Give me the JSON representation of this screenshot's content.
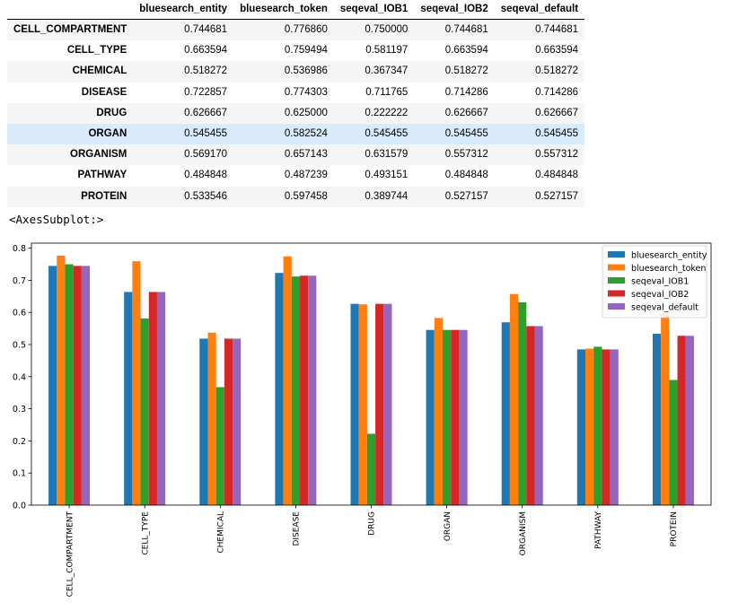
{
  "output_repr": "<AxesSubplot:>",
  "table": {
    "columns": [
      "bluesearch_entity",
      "bluesearch_token",
      "seqeval_IOB1",
      "seqeval_IOB2",
      "seqeval_default"
    ],
    "rows": [
      {
        "label": "CELL_COMPARTMENT",
        "values": [
          "0.744681",
          "0.776860",
          "0.750000",
          "0.744681",
          "0.744681"
        ]
      },
      {
        "label": "CELL_TYPE",
        "values": [
          "0.663594",
          "0.759494",
          "0.581197",
          "0.663594",
          "0.663594"
        ]
      },
      {
        "label": "CHEMICAL",
        "values": [
          "0.518272",
          "0.536986",
          "0.367347",
          "0.518272",
          "0.518272"
        ]
      },
      {
        "label": "DISEASE",
        "values": [
          "0.722857",
          "0.774303",
          "0.711765",
          "0.714286",
          "0.714286"
        ]
      },
      {
        "label": "DRUG",
        "values": [
          "0.626667",
          "0.625000",
          "0.222222",
          "0.626667",
          "0.626667"
        ]
      },
      {
        "label": "ORGAN",
        "values": [
          "0.545455",
          "0.582524",
          "0.545455",
          "0.545455",
          "0.545455"
        ],
        "highlighted": true
      },
      {
        "label": "ORGANISM",
        "values": [
          "0.569170",
          "0.657143",
          "0.631579",
          "0.557312",
          "0.557312"
        ]
      },
      {
        "label": "PATHWAY",
        "values": [
          "0.484848",
          "0.487239",
          "0.493151",
          "0.484848",
          "0.484848"
        ]
      },
      {
        "label": "PROTEIN",
        "values": [
          "0.533546",
          "0.597458",
          "0.389744",
          "0.527157",
          "0.527157"
        ]
      }
    ]
  },
  "chart_data": {
    "type": "bar",
    "categories": [
      "CELL_COMPARTMENT",
      "CELL_TYPE",
      "CHEMICAL",
      "DISEASE",
      "DRUG",
      "ORGAN",
      "ORGANISM",
      "PATHWAY",
      "PROTEIN"
    ],
    "series": [
      {
        "name": "bluesearch_entity",
        "color": "#1f77b4",
        "values": [
          0.744681,
          0.663594,
          0.518272,
          0.722857,
          0.626667,
          0.545455,
          0.56917,
          0.484848,
          0.533546
        ]
      },
      {
        "name": "bluesearch_token",
        "color": "#ff7f0e",
        "values": [
          0.77686,
          0.759494,
          0.536986,
          0.774303,
          0.625,
          0.582524,
          0.657143,
          0.487239,
          0.597458
        ]
      },
      {
        "name": "seqeval_IOB1",
        "color": "#2ca02c",
        "values": [
          0.75,
          0.581197,
          0.367347,
          0.711765,
          0.222222,
          0.545455,
          0.631579,
          0.493151,
          0.389744
        ]
      },
      {
        "name": "seqeval_IOB2",
        "color": "#d62728",
        "values": [
          0.744681,
          0.663594,
          0.518272,
          0.714286,
          0.626667,
          0.545455,
          0.557312,
          0.484848,
          0.527157
        ]
      },
      {
        "name": "seqeval_default",
        "color": "#9467bd",
        "values": [
          0.744681,
          0.663594,
          0.518272,
          0.714286,
          0.626667,
          0.545455,
          0.557312,
          0.484848,
          0.527157
        ]
      }
    ],
    "yticks": [
      "0.0",
      "0.1",
      "0.2",
      "0.3",
      "0.4",
      "0.5",
      "0.6",
      "0.7",
      "0.8"
    ],
    "ylim": [
      0,
      0.8156
    ],
    "legend_position": "top-right",
    "grid": false
  }
}
